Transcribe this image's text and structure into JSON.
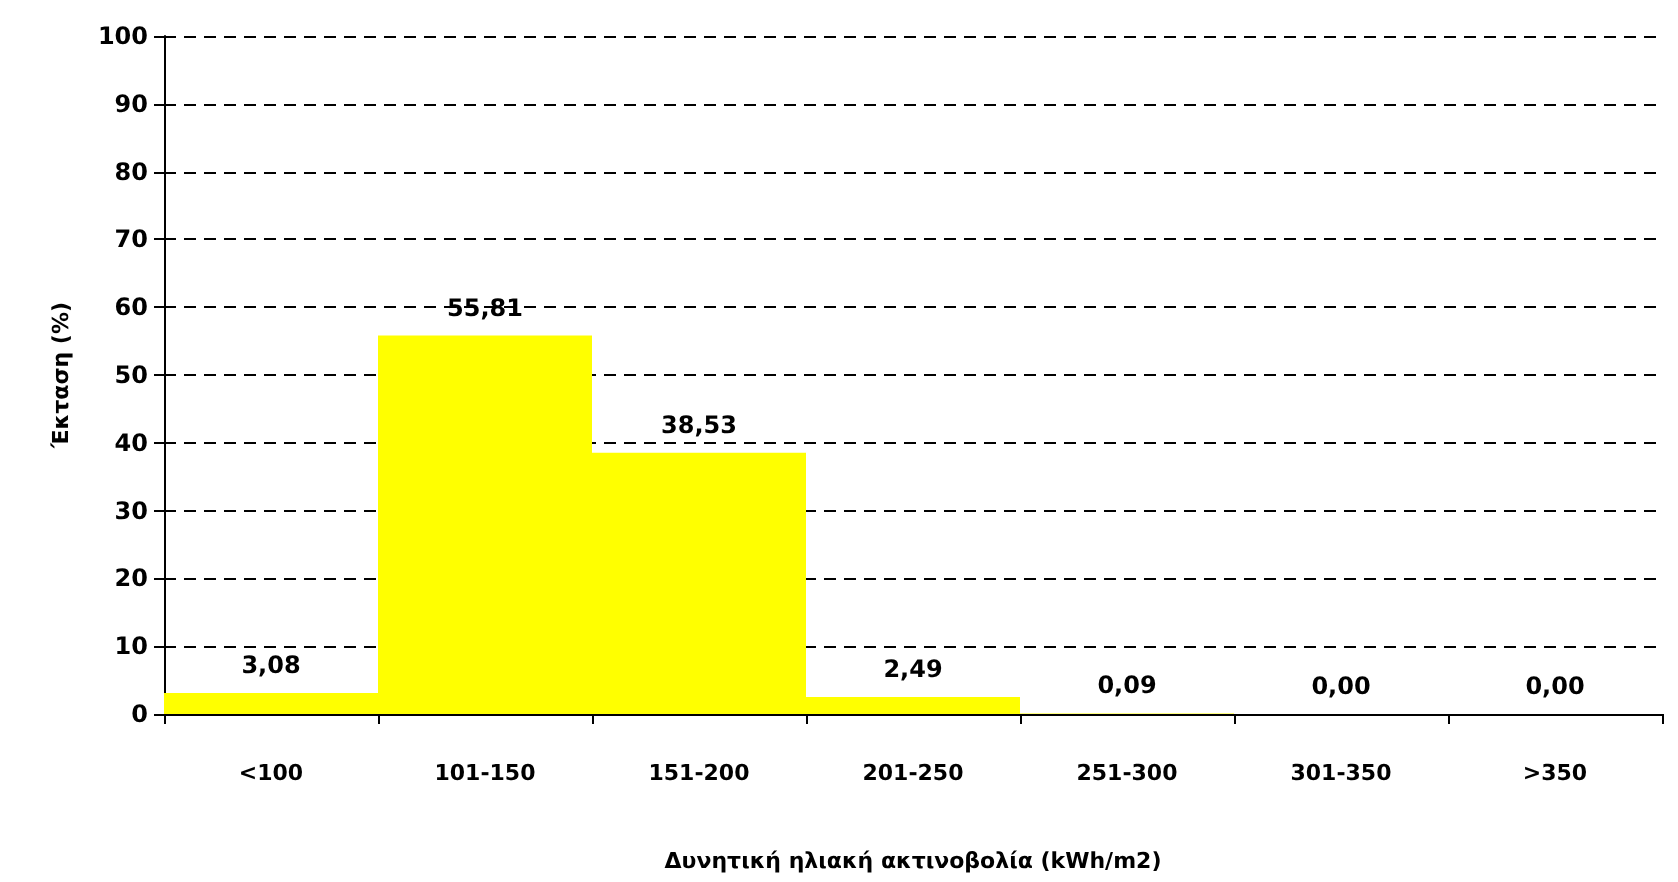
{
  "chart_data": {
    "type": "bar",
    "xlabel": "Δυνητική ηλιακή ακτινοβολία (kWh/m2)",
    "ylabel": "Έκταση (%)",
    "categories": [
      "<100",
      "101-150",
      "151-200",
      "201-250",
      "251-300",
      "301-350",
      ">350"
    ],
    "values": [
      3.08,
      55.81,
      38.53,
      2.49,
      0.09,
      0.0,
      0.0
    ],
    "value_labels": [
      "3,08",
      "55,81",
      "38,53",
      "2,49",
      "0,09",
      "0,00",
      "0,00"
    ],
    "color": "#ffff00",
    "ylim": [
      0,
      100
    ],
    "yticks": [
      0,
      10,
      20,
      30,
      40,
      50,
      60,
      70,
      80,
      90,
      100
    ],
    "grid": "y"
  }
}
